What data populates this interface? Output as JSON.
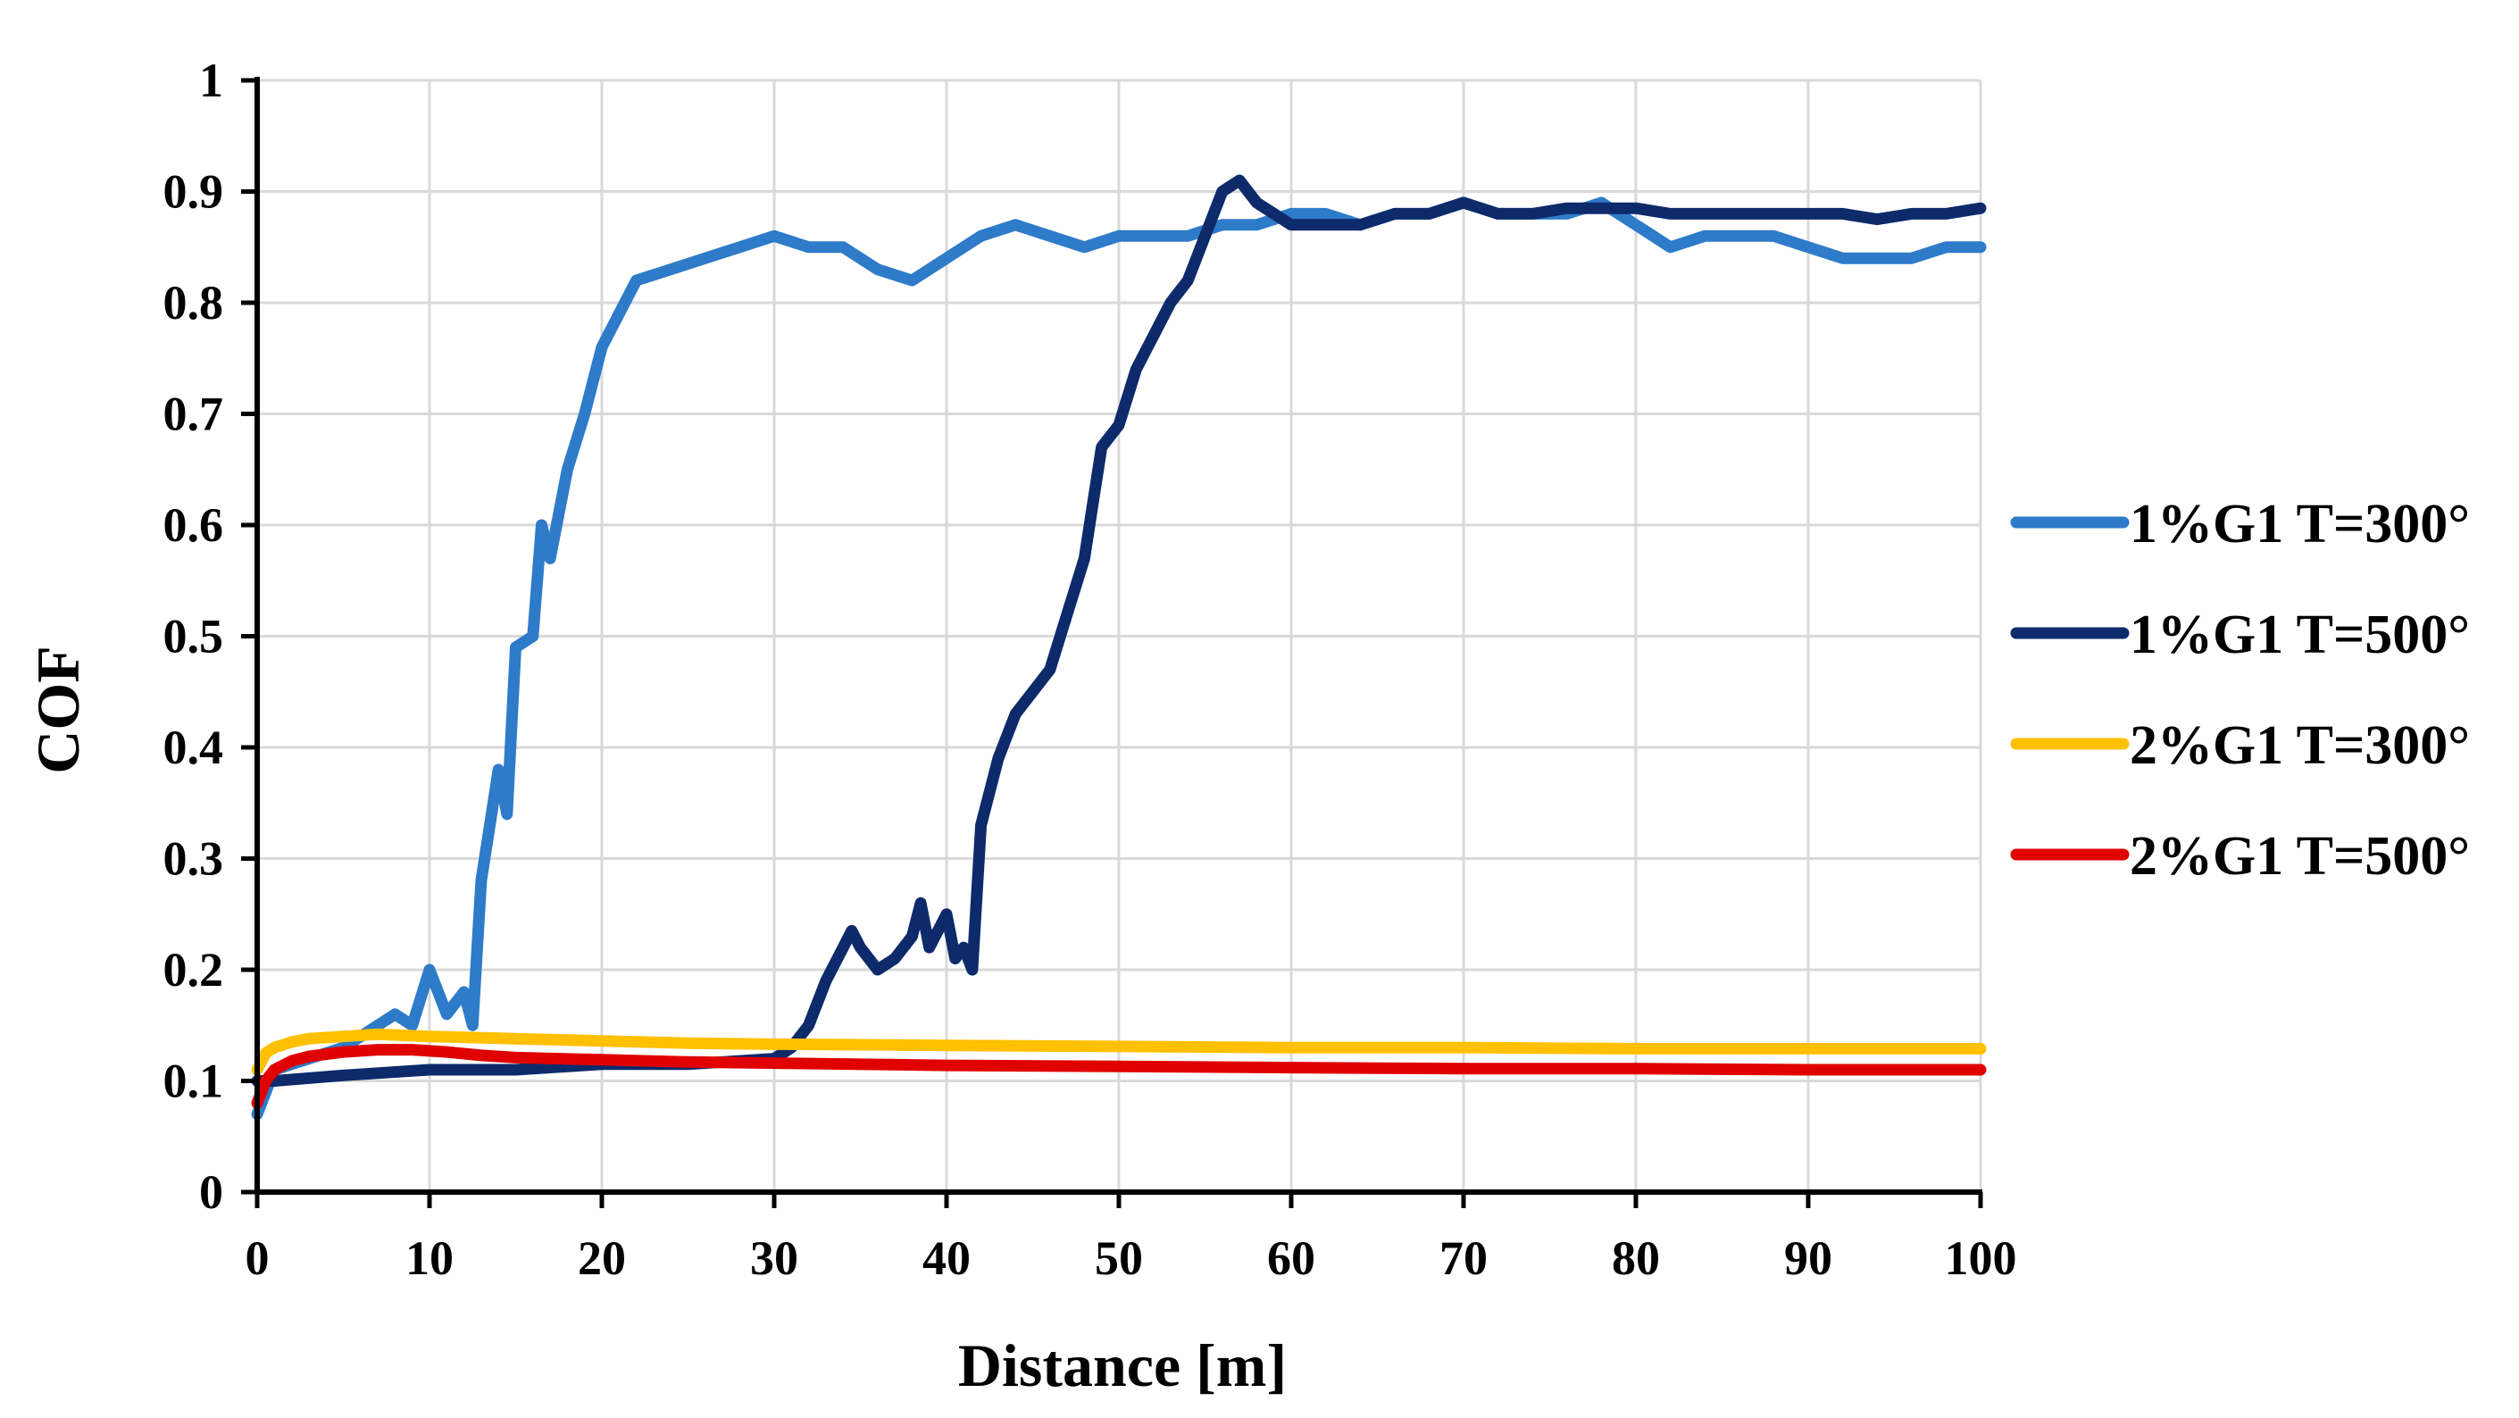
{
  "chart_data": {
    "type": "line",
    "title": "",
    "xlabel": "Distance [m]",
    "ylabel": "COF",
    "xlim": [
      0,
      100
    ],
    "ylim": [
      0,
      1
    ],
    "xticks": [
      0,
      10,
      20,
      30,
      40,
      50,
      60,
      70,
      80,
      90,
      100
    ],
    "yticks": [
      0,
      0.1,
      0.2,
      0.3,
      0.4,
      0.5,
      0.6,
      0.7,
      0.8,
      0.9,
      1
    ],
    "ytick_labels": [
      "0",
      "0.1",
      "0.2",
      "0.3",
      "0.4",
      "0.5",
      "0.6",
      "0.7",
      "0.8",
      "0.9",
      "1"
    ],
    "xtick_labels": [
      "0",
      "10",
      "20",
      "30",
      "40",
      "50",
      "60",
      "70",
      "80",
      "90",
      "100"
    ],
    "grid": true,
    "legend_position": "right",
    "series": [
      {
        "name": "1%G1 T=300°",
        "color": "#2E7BC9",
        "points": [
          [
            0,
            0.07
          ],
          [
            1,
            0.11
          ],
          [
            3,
            0.12
          ],
          [
            5,
            0.13
          ],
          [
            7,
            0.15
          ],
          [
            8,
            0.16
          ],
          [
            9,
            0.15
          ],
          [
            10,
            0.2
          ],
          [
            11,
            0.16
          ],
          [
            12,
            0.18
          ],
          [
            12.5,
            0.15
          ],
          [
            13,
            0.28
          ],
          [
            14,
            0.38
          ],
          [
            14.5,
            0.34
          ],
          [
            15,
            0.49
          ],
          [
            16,
            0.5
          ],
          [
            16.5,
            0.6
          ],
          [
            17,
            0.57
          ],
          [
            18,
            0.65
          ],
          [
            19,
            0.7
          ],
          [
            20,
            0.76
          ],
          [
            21,
            0.79
          ],
          [
            22,
            0.82
          ],
          [
            24,
            0.83
          ],
          [
            26,
            0.84
          ],
          [
            28,
            0.85
          ],
          [
            30,
            0.86
          ],
          [
            32,
            0.85
          ],
          [
            34,
            0.85
          ],
          [
            36,
            0.83
          ],
          [
            38,
            0.82
          ],
          [
            40,
            0.84
          ],
          [
            42,
            0.86
          ],
          [
            44,
            0.87
          ],
          [
            46,
            0.86
          ],
          [
            48,
            0.85
          ],
          [
            50,
            0.86
          ],
          [
            52,
            0.86
          ],
          [
            54,
            0.86
          ],
          [
            56,
            0.87
          ],
          [
            58,
            0.87
          ],
          [
            60,
            0.88
          ],
          [
            62,
            0.88
          ],
          [
            64,
            0.87
          ],
          [
            66,
            0.88
          ],
          [
            68,
            0.88
          ],
          [
            70,
            0.89
          ],
          [
            72,
            0.88
          ],
          [
            74,
            0.88
          ],
          [
            76,
            0.88
          ],
          [
            78,
            0.89
          ],
          [
            80,
            0.87
          ],
          [
            82,
            0.85
          ],
          [
            84,
            0.86
          ],
          [
            86,
            0.86
          ],
          [
            88,
            0.86
          ],
          [
            90,
            0.85
          ],
          [
            92,
            0.84
          ],
          [
            94,
            0.84
          ],
          [
            96,
            0.84
          ],
          [
            98,
            0.85
          ],
          [
            100,
            0.85
          ]
        ]
      },
      {
        "name": "1%G1 T=500°",
        "color": "#0D2A6B",
        "points": [
          [
            0,
            0.1
          ],
          [
            1,
            0.1
          ],
          [
            5,
            0.105
          ],
          [
            10,
            0.11
          ],
          [
            15,
            0.11
          ],
          [
            20,
            0.115
          ],
          [
            25,
            0.115
          ],
          [
            30,
            0.12
          ],
          [
            31,
            0.13
          ],
          [
            32,
            0.15
          ],
          [
            33,
            0.19
          ],
          [
            34,
            0.22
          ],
          [
            34.5,
            0.235
          ],
          [
            35,
            0.22
          ],
          [
            36,
            0.2
          ],
          [
            37,
            0.21
          ],
          [
            38,
            0.23
          ],
          [
            38.5,
            0.26
          ],
          [
            39,
            0.22
          ],
          [
            40,
            0.25
          ],
          [
            40.5,
            0.21
          ],
          [
            41,
            0.22
          ],
          [
            41.5,
            0.2
          ],
          [
            42,
            0.33
          ],
          [
            43,
            0.39
          ],
          [
            44,
            0.43
          ],
          [
            45,
            0.45
          ],
          [
            46,
            0.47
          ],
          [
            47,
            0.52
          ],
          [
            48,
            0.57
          ],
          [
            48.5,
            0.62
          ],
          [
            49,
            0.67
          ],
          [
            50,
            0.69
          ],
          [
            51,
            0.74
          ],
          [
            52,
            0.77
          ],
          [
            53,
            0.8
          ],
          [
            54,
            0.82
          ],
          [
            55,
            0.86
          ],
          [
            56,
            0.9
          ],
          [
            57,
            0.91
          ],
          [
            58,
            0.89
          ],
          [
            59,
            0.88
          ],
          [
            60,
            0.87
          ],
          [
            62,
            0.87
          ],
          [
            64,
            0.87
          ],
          [
            66,
            0.88
          ],
          [
            68,
            0.88
          ],
          [
            70,
            0.89
          ],
          [
            72,
            0.88
          ],
          [
            74,
            0.88
          ],
          [
            76,
            0.885
          ],
          [
            78,
            0.885
          ],
          [
            80,
            0.885
          ],
          [
            82,
            0.88
          ],
          [
            84,
            0.88
          ],
          [
            86,
            0.88
          ],
          [
            88,
            0.88
          ],
          [
            90,
            0.88
          ],
          [
            92,
            0.88
          ],
          [
            94,
            0.875
          ],
          [
            96,
            0.88
          ],
          [
            98,
            0.88
          ],
          [
            100,
            0.885
          ]
        ]
      },
      {
        "name": "2%G1 T=300°",
        "color": "#FFC000",
        "points": [
          [
            0,
            0.11
          ],
          [
            0.5,
            0.125
          ],
          [
            1,
            0.13
          ],
          [
            2,
            0.135
          ],
          [
            3,
            0.138
          ],
          [
            5,
            0.14
          ],
          [
            7,
            0.142
          ],
          [
            10,
            0.14
          ],
          [
            15,
            0.138
          ],
          [
            20,
            0.136
          ],
          [
            25,
            0.134
          ],
          [
            30,
            0.133
          ],
          [
            40,
            0.132
          ],
          [
            50,
            0.131
          ],
          [
            60,
            0.13
          ],
          [
            70,
            0.13
          ],
          [
            80,
            0.129
          ],
          [
            90,
            0.129
          ],
          [
            100,
            0.129
          ]
        ]
      },
      {
        "name": "2%G1 T=500°",
        "color": "#E00000",
        "points": [
          [
            0,
            0.08
          ],
          [
            0.5,
            0.1
          ],
          [
            1,
            0.11
          ],
          [
            2,
            0.118
          ],
          [
            3,
            0.122
          ],
          [
            5,
            0.126
          ],
          [
            7,
            0.128
          ],
          [
            9,
            0.128
          ],
          [
            11,
            0.126
          ],
          [
            13,
            0.123
          ],
          [
            15,
            0.121
          ],
          [
            20,
            0.119
          ],
          [
            25,
            0.117
          ],
          [
            30,
            0.116
          ],
          [
            40,
            0.114
          ],
          [
            50,
            0.113
          ],
          [
            60,
            0.112
          ],
          [
            70,
            0.111
          ],
          [
            80,
            0.111
          ],
          [
            90,
            0.11
          ],
          [
            100,
            0.11
          ]
        ]
      }
    ]
  }
}
